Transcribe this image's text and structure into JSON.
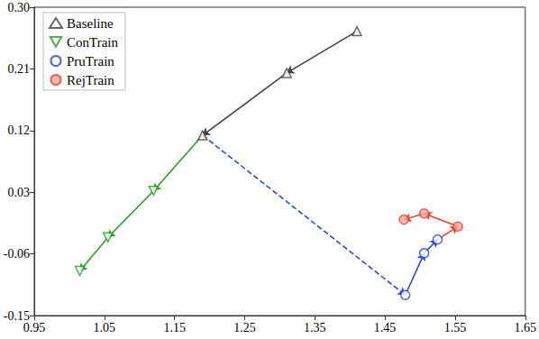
{
  "chart_data": {
    "type": "line",
    "series": [
      {
        "name": "Baseline",
        "color": "#404040",
        "marker": "triangle-up",
        "line_style": "solid",
        "x": [
          1.41,
          1.31,
          1.19
        ],
        "values": [
          0.265,
          0.204,
          0.113
        ]
      },
      {
        "name": "ConTrain",
        "color": "#1f9a1f",
        "marker": "triangle-down",
        "line_style": "solid",
        "x": [
          1.12,
          1.055,
          1.015
        ],
        "values": [
          0.032,
          -0.036,
          -0.085
        ]
      },
      {
        "name": "PruTrain",
        "color": "#1f3fe0",
        "marker": "circle",
        "line_style": "solid",
        "x": [
          1.479,
          1.506,
          1.525
        ],
        "values": [
          -0.12,
          -0.059,
          -0.039
        ]
      },
      {
        "name": "RejTrain",
        "color": "#e8402a",
        "marker": "circle",
        "line_style": "solid",
        "x": [
          1.554,
          1.506,
          1.477
        ],
        "values": [
          -0.02,
          -0.001,
          -0.01
        ]
      }
    ],
    "xlim": [
      0.95,
      1.65
    ],
    "xticks": [
      0.95,
      1.05,
      1.15,
      1.25,
      1.35,
      1.45,
      1.55,
      1.65
    ],
    "ylim": [
      -0.15,
      0.3
    ],
    "yticks": [
      -0.15,
      -0.06,
      0.03,
      0.12,
      0.21,
      {
        "value": 0.3,
        "label": "0.30"
      }
    ],
    "grid": false,
    "legend": "upper left"
  }
}
